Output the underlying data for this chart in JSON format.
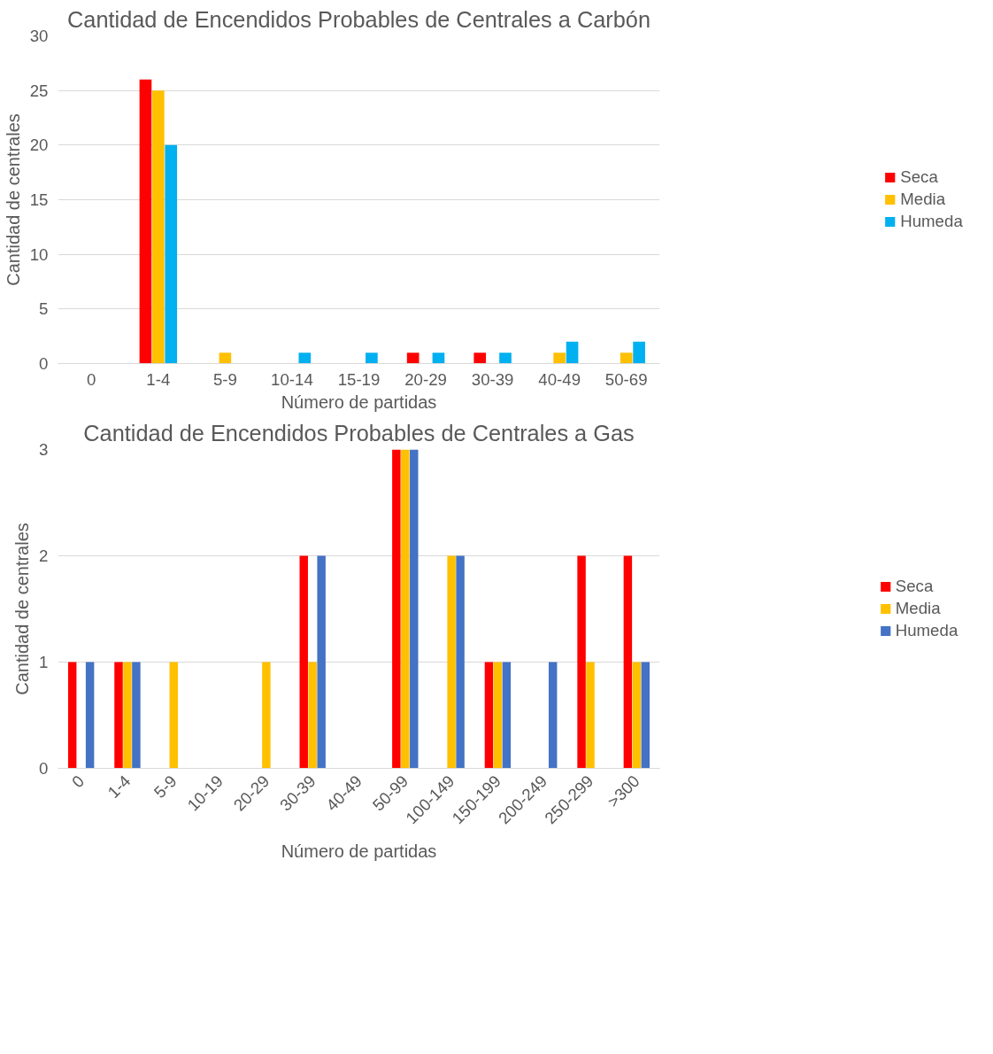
{
  "chart_data": [
    {
      "type": "bar",
      "title": "Cantidad de Encendidos Probables de Centrales a Carbón",
      "xlabel": "Número de partidas",
      "ylabel": "Cantidad de centrales",
      "categories": [
        "0",
        "1-4",
        "5-9",
        "10-14",
        "15-19",
        "20-29",
        "30-39",
        "40-49",
        "50-69"
      ],
      "series": [
        {
          "name": "Seca",
          "color": "#ff0000",
          "values": [
            0,
            26,
            0,
            0,
            0,
            1,
            1,
            0,
            0
          ]
        },
        {
          "name": "Media",
          "color": "#ffc000",
          "values": [
            0,
            25,
            1,
            0,
            0,
            0,
            0,
            1,
            1
          ]
        },
        {
          "name": "Humeda",
          "color": "#00b0f0",
          "values": [
            0,
            20,
            0,
            1,
            1,
            1,
            1,
            2,
            2
          ]
        }
      ],
      "ylim": [
        0,
        30
      ],
      "yticks": [
        0,
        5,
        10,
        15,
        20,
        25,
        30
      ],
      "grid": "y",
      "legend": "right"
    },
    {
      "type": "bar",
      "title": "Cantidad de Encendidos Probables de Centrales a Gas",
      "xlabel": "Número de partidas",
      "ylabel": "Cantidad de centrales",
      "categories": [
        "0",
        "1-4",
        "5-9",
        "10-19",
        "20-29",
        "30-39",
        "40-49",
        "50-99",
        "100-149",
        "150-199",
        "200-249",
        "250-299",
        ">300"
      ],
      "series": [
        {
          "name": "Seca",
          "color": "#ff0000",
          "values": [
            1,
            1,
            0,
            0,
            0,
            2,
            0,
            3,
            0,
            1,
            0,
            2,
            2
          ]
        },
        {
          "name": "Media",
          "color": "#ffc000",
          "values": [
            0,
            1,
            1,
            0,
            1,
            1,
            0,
            3,
            2,
            1,
            0,
            1,
            1
          ]
        },
        {
          "name": "Humeda",
          "color": "#4472c4",
          "values": [
            1,
            1,
            0,
            0,
            0,
            2,
            0,
            3,
            2,
            1,
            1,
            0,
            1
          ]
        }
      ],
      "ylim": [
        0,
        3
      ],
      "yticks": [
        0,
        1,
        2,
        3
      ],
      "grid": "y",
      "legend": "right"
    }
  ]
}
